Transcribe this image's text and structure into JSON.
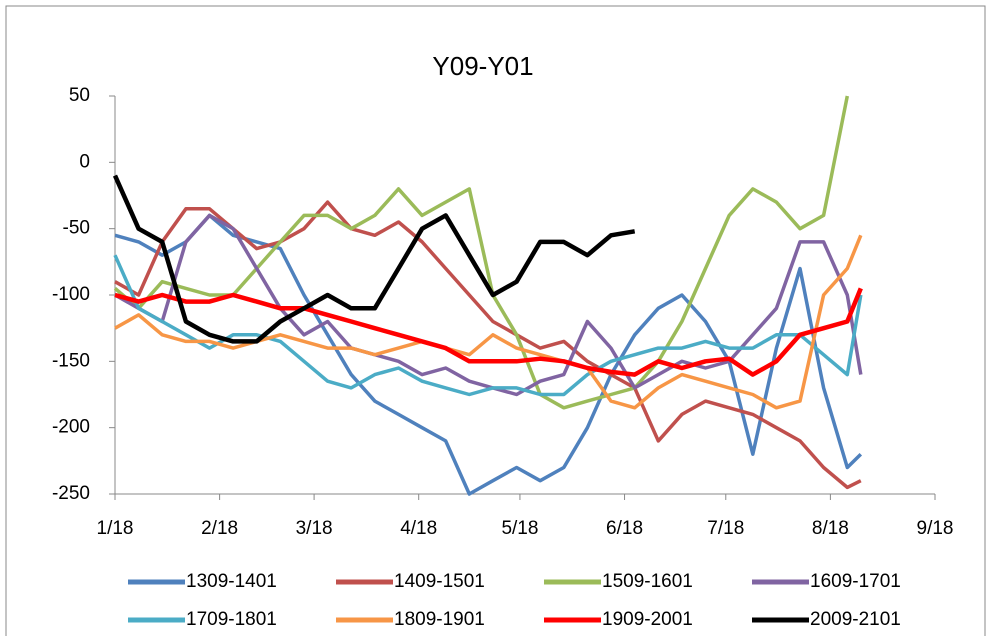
{
  "chart_data": {
    "type": "line",
    "title": "Y09-Y01",
    "x": [
      "1/18",
      "1/25",
      "2/1",
      "2/8",
      "2/15",
      "2/22",
      "3/1",
      "3/8",
      "3/15",
      "3/22",
      "3/29",
      "4/5",
      "4/12",
      "4/19",
      "4/26",
      "5/3",
      "5/10",
      "5/17",
      "5/24",
      "5/31",
      "6/7",
      "6/14",
      "6/21",
      "6/28",
      "7/5",
      "7/12",
      "7/19",
      "7/26",
      "8/2",
      "8/9",
      "8/16",
      "8/23",
      "8/27"
    ],
    "xlim": [
      "1/18",
      "9/18"
    ],
    "xticks": [
      "1/18",
      "2/18",
      "3/18",
      "4/18",
      "5/18",
      "6/18",
      "7/18",
      "8/18",
      "9/18"
    ],
    "ylim": [
      -250,
      50
    ],
    "yticks": [
      50,
      0,
      -50,
      -100,
      -150,
      -200,
      -250
    ],
    "legend": "bottom",
    "series": [
      {
        "name": "1309-1401",
        "color": "#4f81bd",
        "values": [
          -55,
          -60,
          -70,
          -60,
          -40,
          -55,
          -60,
          -65,
          -100,
          -130,
          -160,
          -180,
          -190,
          -200,
          -210,
          -250,
          -240,
          -230,
          -240,
          -230,
          -200,
          -160,
          -130,
          -110,
          -100,
          -120,
          -150,
          -220,
          -140,
          -80,
          -170,
          -230,
          -220
        ]
      },
      {
        "name": "1409-1501",
        "color": "#c0504d",
        "values": [
          -90,
          -100,
          -60,
          -35,
          -35,
          -50,
          -65,
          -60,
          -50,
          -30,
          -50,
          -55,
          -45,
          -60,
          -80,
          -100,
          -120,
          -130,
          -140,
          -135,
          -150,
          -160,
          -170,
          -210,
          -190,
          -180,
          -185,
          -190,
          -200,
          -210,
          -230,
          -245,
          -240
        ]
      },
      {
        "name": "1509-1601",
        "color": "#9bbb59",
        "values": [
          -95,
          -110,
          -90,
          -95,
          -100,
          -100,
          -80,
          -60,
          -40,
          -40,
          -50,
          -40,
          -20,
          -40,
          -30,
          -20,
          -100,
          -130,
          -175,
          -185,
          -180,
          -175,
          -170,
          -150,
          -120,
          -80,
          -40,
          -20,
          -30,
          -50,
          -40,
          50,
          null
        ]
      },
      {
        "name": "1609-1701",
        "color": "#8064a2",
        "values": [
          -100,
          -110,
          -120,
          -60,
          -40,
          -50,
          -80,
          -110,
          -130,
          -120,
          -140,
          -145,
          -150,
          -160,
          -155,
          -165,
          -170,
          -175,
          -165,
          -160,
          -120,
          -140,
          -170,
          -160,
          -150,
          -155,
          -150,
          -130,
          -110,
          -60,
          -60,
          -100,
          -160
        ]
      },
      {
        "name": "1709-1801",
        "color": "#4bacc6",
        "values": [
          -70,
          -110,
          -120,
          -130,
          -140,
          -130,
          -130,
          -135,
          -150,
          -165,
          -170,
          -160,
          -155,
          -165,
          -170,
          -175,
          -170,
          -170,
          -175,
          -175,
          -160,
          -150,
          -145,
          -140,
          -140,
          -135,
          -140,
          -140,
          -130,
          -130,
          -145,
          -160,
          -100
        ]
      },
      {
        "name": "1809-1901",
        "color": "#f79646",
        "values": [
          -125,
          -115,
          -130,
          -135,
          -135,
          -140,
          -135,
          -130,
          -135,
          -140,
          -140,
          -145,
          -140,
          -135,
          -140,
          -145,
          -130,
          -140,
          -145,
          -150,
          -155,
          -180,
          -185,
          -170,
          -160,
          -165,
          -170,
          -175,
          -185,
          -180,
          -100,
          -80,
          -55
        ]
      },
      {
        "name": "1909-2001",
        "color": "#ff0000",
        "values": [
          -100,
          -105,
          -100,
          -105,
          -105,
          -100,
          -105,
          -110,
          -110,
          -115,
          -120,
          -125,
          -130,
          -135,
          -140,
          -150,
          -150,
          -150,
          -148,
          -150,
          -155,
          -158,
          -160,
          -150,
          -155,
          -150,
          -148,
          -160,
          -150,
          -130,
          -125,
          -120,
          -95
        ]
      },
      {
        "name": "2009-2101",
        "color": "#000000",
        "values": [
          -10,
          -50,
          -60,
          -120,
          -130,
          -135,
          -135,
          -120,
          -110,
          -100,
          -110,
          -110,
          -80,
          -50,
          -40,
          -70,
          -100,
          -90,
          -60,
          -60,
          -70,
          -55,
          -52,
          null,
          null,
          null,
          null,
          null,
          null,
          null,
          null,
          null,
          null
        ]
      }
    ]
  }
}
